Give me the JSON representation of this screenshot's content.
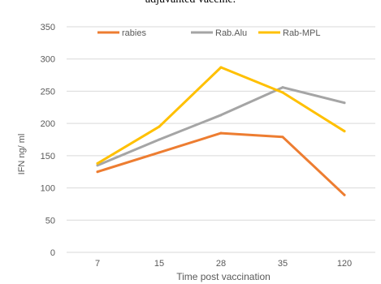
{
  "caption": "adjuvanted vaccine.",
  "chart_data": {
    "type": "line",
    "categories": [
      "7",
      "15",
      "28",
      "35",
      "120"
    ],
    "series": [
      {
        "name": "rabies",
        "color": "#ED7D31",
        "values": [
          125,
          155,
          185,
          179,
          89
        ]
      },
      {
        "name": "Rab.Alu",
        "color": "#A5A5A5",
        "values": [
          135,
          175,
          213,
          256,
          232
        ]
      },
      {
        "name": "Rab-MPL",
        "color": "#FFC000",
        "values": [
          138,
          195,
          287,
          248,
          188
        ]
      }
    ],
    "xlabel": "Time post vaccination",
    "ylabel": "IFN ng/ ml",
    "ylim": [
      0,
      350
    ],
    "yticks": [
      0,
      50,
      100,
      150,
      200,
      250,
      300,
      350
    ],
    "grid": true,
    "legend_position": "top"
  }
}
